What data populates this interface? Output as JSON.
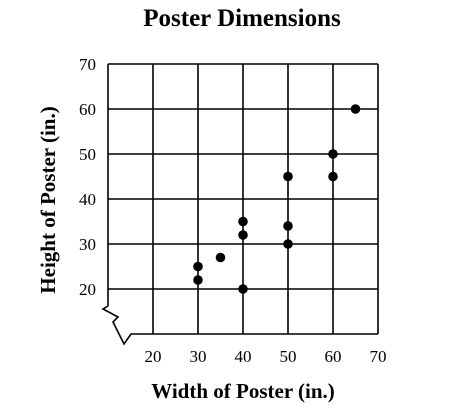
{
  "chart_data": {
    "type": "scatter",
    "title": "Poster Dimensions",
    "xlabel": "Width of Poster (in.)",
    "ylabel": "Height of Poster (in.)",
    "xlim": [
      10,
      70
    ],
    "ylim": [
      10,
      70
    ],
    "x_ticks": [
      "20",
      "30",
      "40",
      "50",
      "60",
      "70"
    ],
    "y_ticks": [
      "20",
      "30",
      "40",
      "50",
      "60",
      "70"
    ],
    "grid": true,
    "axis_break": "both",
    "marker_color": "#000000",
    "points": [
      {
        "x": 30,
        "y": 25
      },
      {
        "x": 30,
        "y": 22
      },
      {
        "x": 35,
        "y": 27
      },
      {
        "x": 40,
        "y": 35
      },
      {
        "x": 40,
        "y": 32
      },
      {
        "x": 40,
        "y": 20
      },
      {
        "x": 50,
        "y": 45
      },
      {
        "x": 50,
        "y": 34
      },
      {
        "x": 50,
        "y": 30
      },
      {
        "x": 60,
        "y": 50
      },
      {
        "x": 60,
        "y": 45
      },
      {
        "x": 65,
        "y": 60
      }
    ]
  }
}
